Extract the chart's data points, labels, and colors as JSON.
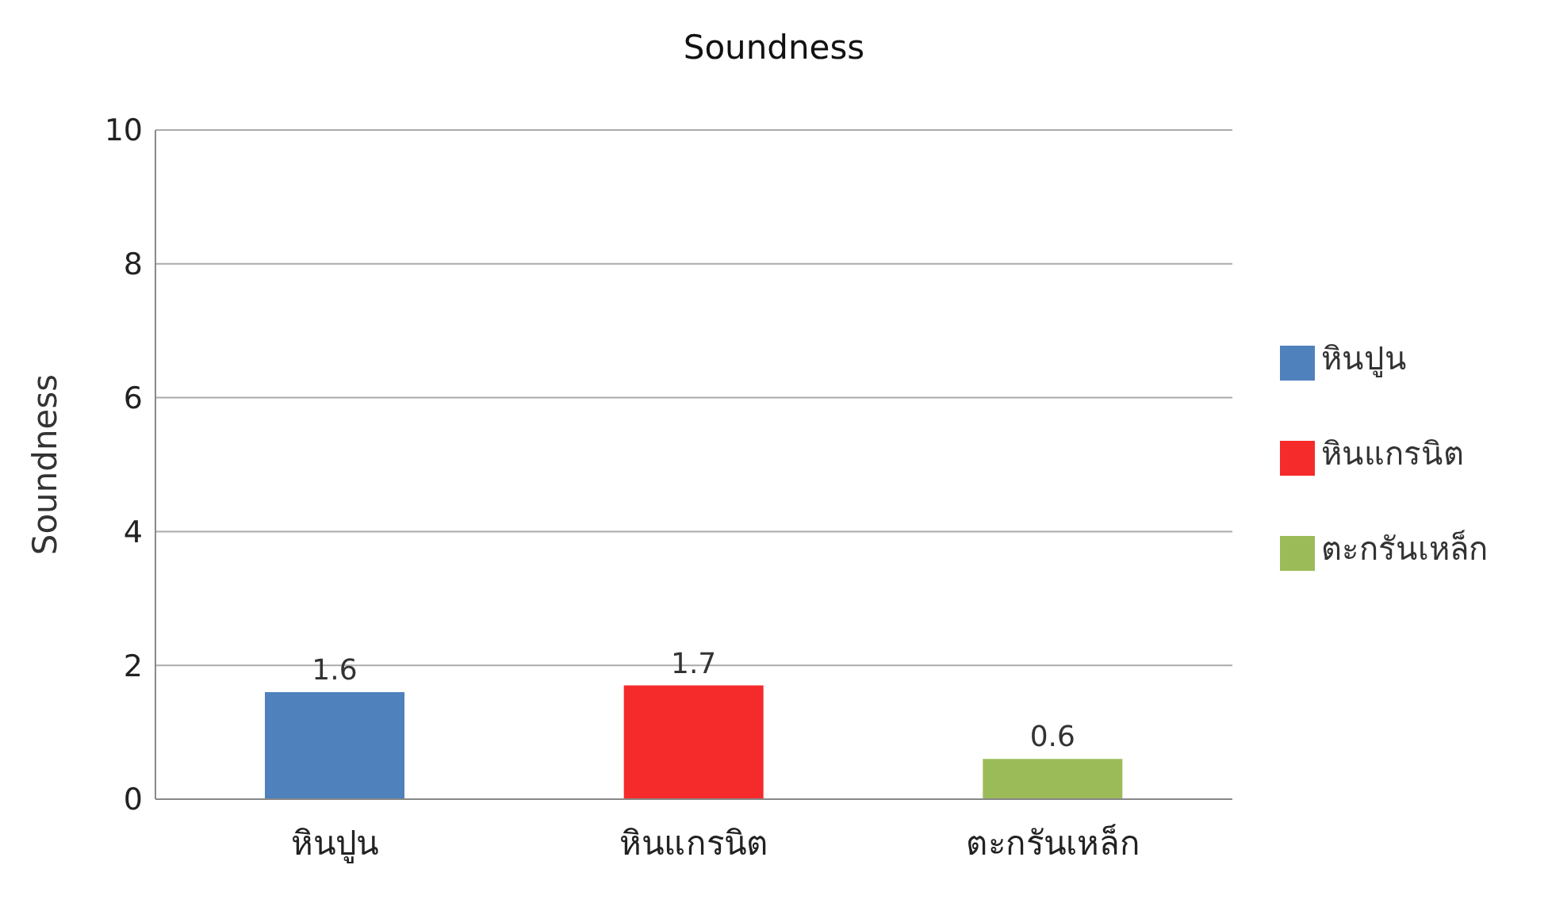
{
  "chart_data": {
    "type": "bar",
    "title": "Soundness",
    "ylabel": "Soundness",
    "categories": [
      "หินปูน",
      "หินแกรนิต",
      "ตะกรันเหล็ก"
    ],
    "series": [
      {
        "name": "หินปูน",
        "color": "#4f81bd",
        "values": [
          1.6,
          null,
          null
        ]
      },
      {
        "name": "หินแกรนิต",
        "color": "#f52a2a",
        "values": [
          null,
          1.7,
          null
        ]
      },
      {
        "name": "ตะกรันเหล็ก",
        "color": "#9bbb59",
        "values": [
          null,
          null,
          0.6
        ]
      }
    ],
    "stacked": true,
    "ylim": [
      0,
      10
    ],
    "yticks": [
      0,
      2,
      4,
      6,
      8,
      10
    ],
    "grid": "y",
    "legend": "right",
    "data_labels": true
  }
}
